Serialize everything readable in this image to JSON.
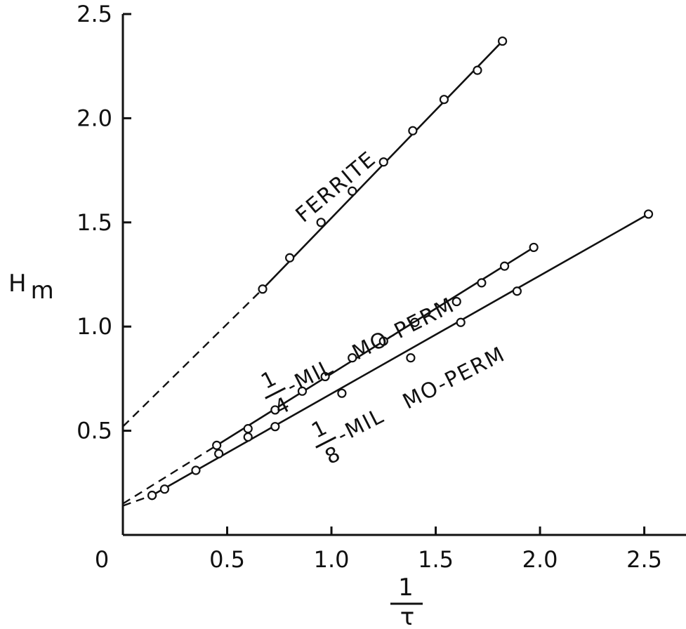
{
  "chart_data": {
    "type": "scatter",
    "title": "",
    "xlabel": {
      "numerator": "1",
      "denominator": "τ"
    },
    "ylabel": {
      "main": "H",
      "sub": "m"
    },
    "xlim": [
      0,
      2.7
    ],
    "ylim": [
      0,
      2.5
    ],
    "x_ticks": [
      {
        "value": 0,
        "label": "0"
      },
      {
        "value": 0.5,
        "label": "0.5"
      },
      {
        "value": 1.0,
        "label": "1.0"
      },
      {
        "value": 1.5,
        "label": "1.5"
      },
      {
        "value": 2.0,
        "label": "2.0"
      },
      {
        "value": 2.5,
        "label": "2.5"
      }
    ],
    "y_ticks": [
      {
        "value": 0.5,
        "label": "0.5"
      },
      {
        "value": 1.0,
        "label": "1.0"
      },
      {
        "value": 1.5,
        "label": "1.5"
      },
      {
        "value": 2.0,
        "label": "2.0"
      },
      {
        "value": 2.5,
        "label": "2.5"
      }
    ],
    "grid": false,
    "series": [
      {
        "label": "FERRITE",
        "points": [
          [
            0.67,
            1.18
          ],
          [
            0.8,
            1.33
          ],
          [
            0.95,
            1.5
          ],
          [
            1.1,
            1.65
          ],
          [
            1.25,
            1.79
          ],
          [
            1.39,
            1.94
          ],
          [
            1.54,
            2.09
          ],
          [
            1.7,
            2.23
          ],
          [
            1.82,
            2.37
          ]
        ],
        "fit_solid": [
          [
            0.67,
            1.18
          ],
          [
            1.82,
            2.37
          ]
        ],
        "fit_dashed": [
          [
            0,
            0.52
          ],
          [
            0.67,
            1.18
          ]
        ]
      },
      {
        "label_numerator": "1",
        "label_denominator": "4",
        "label_suffix": "-MIL   MO-PERM",
        "points": [
          [
            0.14,
            0.19
          ],
          [
            0.45,
            0.43
          ],
          [
            0.6,
            0.51
          ],
          [
            0.73,
            0.6
          ],
          [
            0.86,
            0.69
          ],
          [
            0.97,
            0.76
          ],
          [
            1.1,
            0.85
          ],
          [
            1.25,
            0.93
          ],
          [
            1.4,
            1.02
          ],
          [
            1.6,
            1.12
          ],
          [
            1.72,
            1.21
          ],
          [
            1.83,
            1.29
          ],
          [
            1.97,
            1.38
          ]
        ],
        "fit_solid": [
          [
            0.45,
            0.43
          ],
          [
            1.97,
            1.38
          ]
        ],
        "fit_dashed": [
          [
            0,
            0.15
          ],
          [
            0.45,
            0.43
          ]
        ]
      },
      {
        "label_numerator": "1",
        "label_denominator": "8",
        "label_suffix": "-MIL   MO-PERM",
        "points": [
          [
            0.14,
            0.19
          ],
          [
            0.2,
            0.22
          ],
          [
            0.35,
            0.31
          ],
          [
            0.46,
            0.39
          ],
          [
            0.6,
            0.47
          ],
          [
            0.73,
            0.52
          ],
          [
            1.05,
            0.68
          ],
          [
            1.38,
            0.85
          ],
          [
            1.62,
            1.02
          ],
          [
            1.89,
            1.17
          ],
          [
            2.52,
            1.54
          ]
        ],
        "fit_solid": [
          [
            0.14,
            0.19
          ],
          [
            2.52,
            1.54
          ]
        ],
        "fit_dashed": [
          [
            0,
            0.14
          ],
          [
            0.14,
            0.19
          ]
        ]
      }
    ]
  }
}
